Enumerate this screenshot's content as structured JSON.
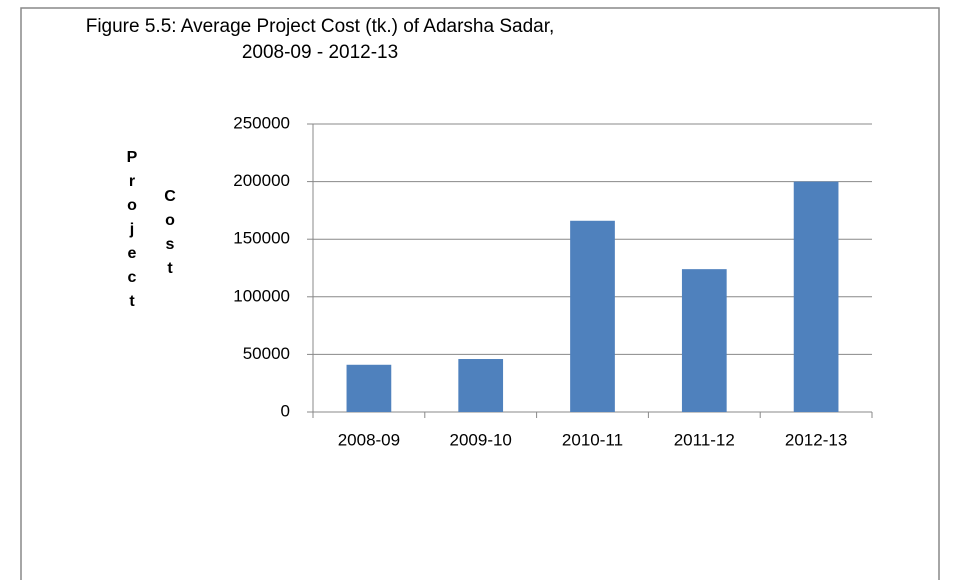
{
  "chart_data": {
    "type": "bar",
    "title": "Figure 5.5: Average Project Cost (tk.) of Adarsha Sadar, 2008-09 - 2012-13",
    "ylabel": "Project Cost",
    "categories": [
      "2008-09",
      "2009-10",
      "2010-11",
      "2011-12",
      "2012-13"
    ],
    "values": [
      41000,
      46000,
      166000,
      124000,
      200000
    ],
    "color": "#4f81bd",
    "ylim": [
      0,
      250000
    ],
    "yticks": [
      0,
      50000,
      100000,
      150000,
      200000,
      250000
    ],
    "grid": true
  }
}
